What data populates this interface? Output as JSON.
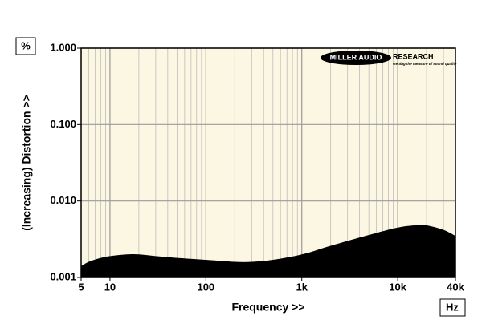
{
  "chart_data": {
    "type": "area",
    "x_label": "Frequency >>",
    "y_label": "(Increasing) Distortion >>",
    "x_unit": "Hz",
    "y_unit": "%",
    "x": [
      5,
      6,
      8,
      10,
      15,
      20,
      30,
      50,
      100,
      200,
      300,
      500,
      1000,
      2000,
      5000,
      10000,
      15000,
      20000,
      30000,
      40000
    ],
    "values": [
      0.0014,
      0.0016,
      0.0018,
      0.0019,
      0.002,
      0.002,
      0.0019,
      0.0018,
      0.0017,
      0.0016,
      0.0016,
      0.0017,
      0.002,
      0.0026,
      0.0036,
      0.0045,
      0.0048,
      0.0048,
      0.0042,
      0.0035
    ],
    "color": "#000000",
    "xlim": [
      5,
      40000
    ],
    "ylim": [
      0.001,
      1
    ],
    "xscale": "log",
    "yscale": "log",
    "grid": true,
    "xticks": [
      5,
      10,
      100,
      {
        "value": 1000,
        "label": "1k"
      },
      {
        "value": 10000,
        "label": "10k"
      },
      {
        "value": 40000,
        "label": "40k"
      }
    ],
    "yticks": [
      {
        "value": 0.001,
        "label": "0.001"
      },
      {
        "value": 0.01,
        "label": "0.010"
      },
      {
        "value": 0.1,
        "label": "0.100"
      },
      {
        "value": 1,
        "label": "1.000"
      }
    ]
  },
  "logo": {
    "name": "MILLER AUDIO",
    "name2": "RESEARCH",
    "tagline": "Getting the measure of sound quality"
  }
}
